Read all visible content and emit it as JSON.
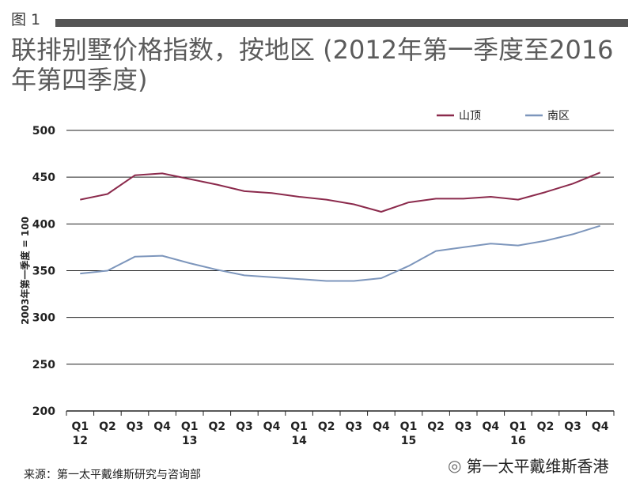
{
  "figure_label": "图 1",
  "title": "联排别墅价格指数，按地区 (2012年第一季度至2016年第四季度)",
  "source": "来源：第一太平戴维斯研究与咨询部",
  "watermark": {
    "icon": "wechat-icon",
    "text": "第一太平戴维斯香港"
  },
  "chart_data": {
    "type": "line",
    "title": "联排别墅价格指数，按地区 (2012年第一季度至2016年第四季度)",
    "xlabel": "",
    "ylabel": "2003年第一季度 = 100",
    "ylim": [
      200,
      500
    ],
    "yticks": [
      200,
      250,
      300,
      350,
      400,
      450,
      500
    ],
    "grid": true,
    "legend_position": "top-right",
    "categories": [
      {
        "q": "Q1",
        "y": "12"
      },
      {
        "q": "Q2",
        "y": ""
      },
      {
        "q": "Q3",
        "y": ""
      },
      {
        "q": "Q4",
        "y": ""
      },
      {
        "q": "Q1",
        "y": "13"
      },
      {
        "q": "Q2",
        "y": ""
      },
      {
        "q": "Q3",
        "y": ""
      },
      {
        "q": "Q4",
        "y": ""
      },
      {
        "q": "Q1",
        "y": "14"
      },
      {
        "q": "Q2",
        "y": ""
      },
      {
        "q": "Q3",
        "y": ""
      },
      {
        "q": "Q4",
        "y": ""
      },
      {
        "q": "Q1",
        "y": "15"
      },
      {
        "q": "Q2",
        "y": ""
      },
      {
        "q": "Q3",
        "y": ""
      },
      {
        "q": "Q4",
        "y": ""
      },
      {
        "q": "Q1",
        "y": "16"
      },
      {
        "q": "Q2",
        "y": ""
      },
      {
        "q": "Q3",
        "y": ""
      },
      {
        "q": "Q4",
        "y": ""
      }
    ],
    "series": [
      {
        "name": "山顶",
        "color": "#8b2a4c",
        "values": [
          426,
          432,
          452,
          454,
          448,
          442,
          435,
          433,
          429,
          426,
          421,
          413,
          423,
          427,
          427,
          429,
          426,
          434,
          443,
          455
        ]
      },
      {
        "name": "南区",
        "color": "#7d96bc",
        "values": [
          347,
          350,
          365,
          366,
          358,
          351,
          345,
          343,
          341,
          339,
          339,
          342,
          355,
          371,
          375,
          379,
          377,
          382,
          389,
          398
        ]
      }
    ]
  }
}
